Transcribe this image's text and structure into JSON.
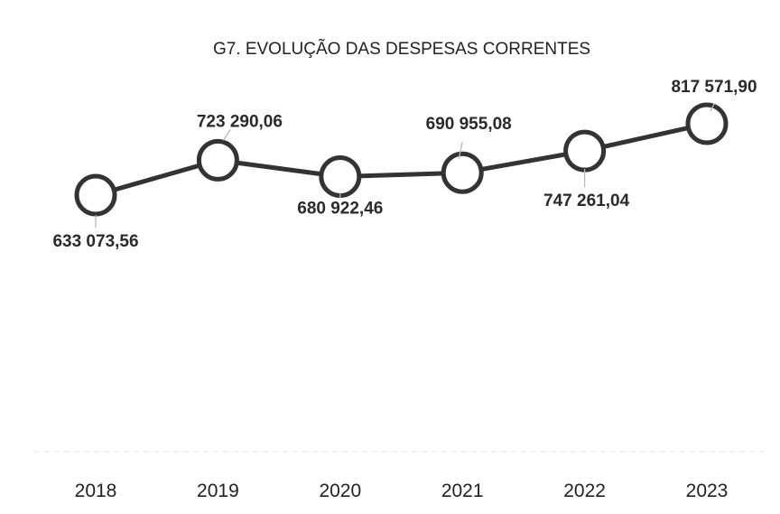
{
  "chart_data": {
    "type": "line",
    "title": "G7. EVOLUÇÃO DAS DESPESAS CORRENTES",
    "xlabel": "",
    "ylabel": "",
    "categories": [
      "2018",
      "2019",
      "2020",
      "2021",
      "2022",
      "2023"
    ],
    "series": [
      {
        "values": [
          633073.56,
          723290.06,
          680922.46,
          690955.08,
          747261.04,
          817571.9
        ],
        "labels": [
          "633 073,56",
          "723 290,06",
          "680 922,46",
          "690 955,08",
          "747 261,04",
          "817 571,90"
        ]
      }
    ],
    "grid": false,
    "legend": "none",
    "line_color": "#333333",
    "marker_fill": "#ffffff"
  }
}
